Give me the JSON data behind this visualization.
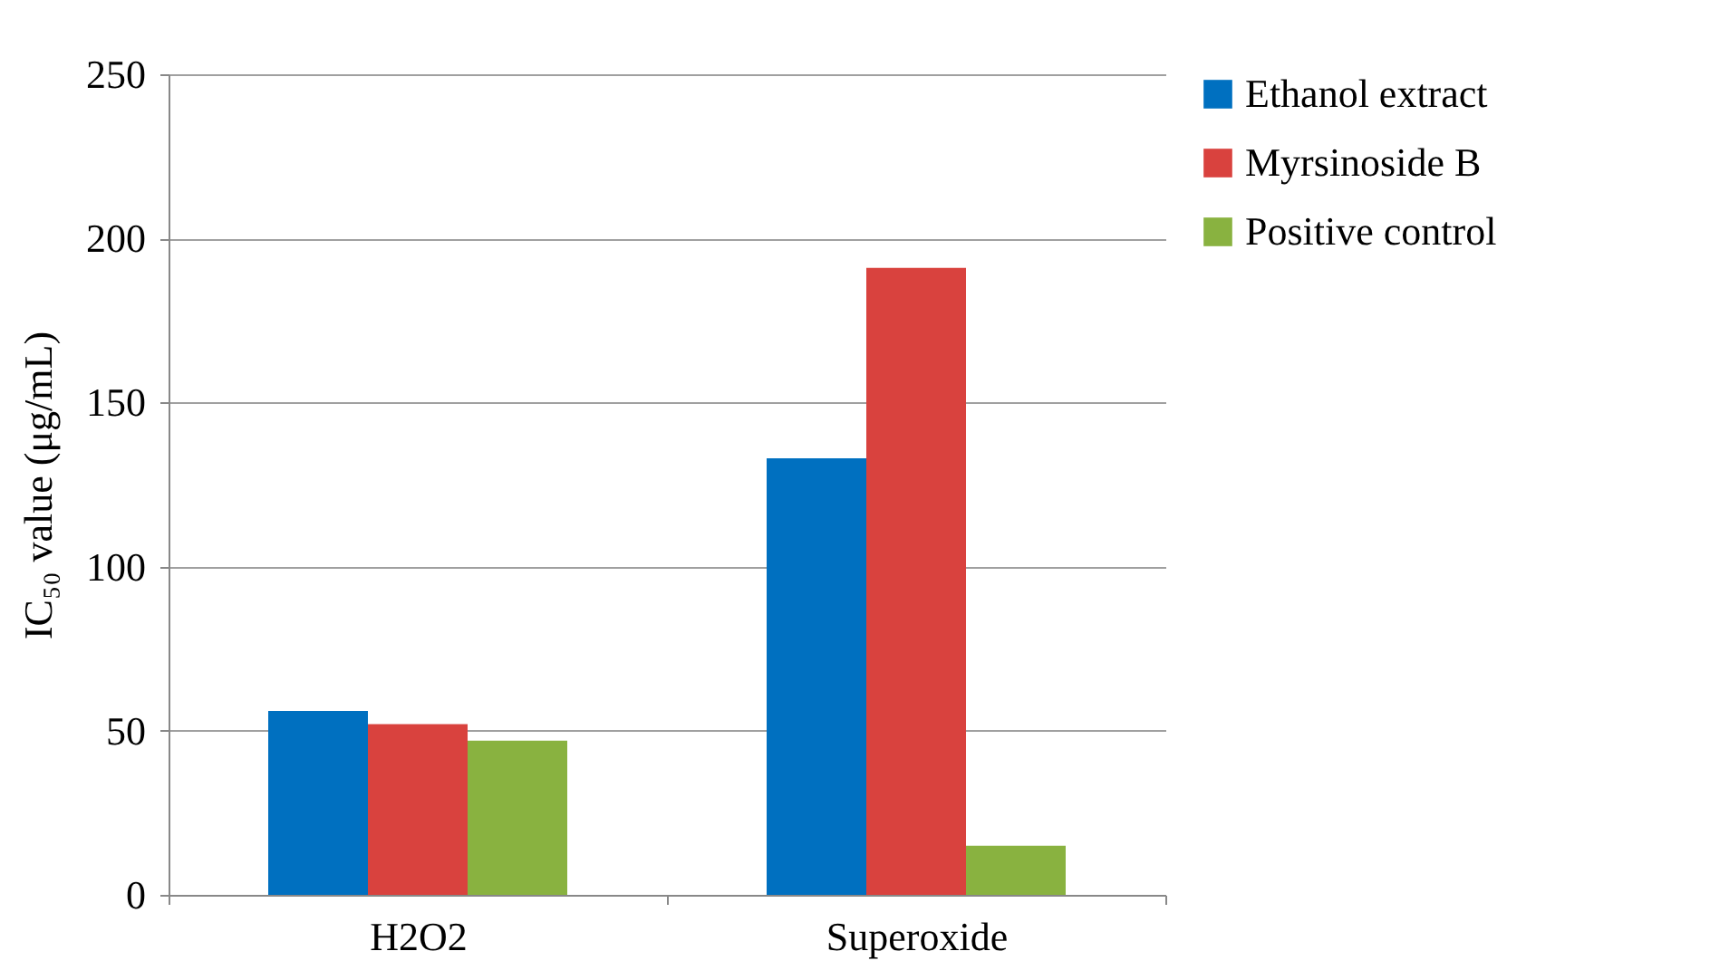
{
  "chart_data": {
    "type": "bar",
    "ylabel": "IC₅₀ value (μg/mL)",
    "categories": [
      "H2O2",
      "Superoxide"
    ],
    "series": [
      {
        "name": "Ethanol extract",
        "color": "#0070c0",
        "values": [
          56,
          133
        ]
      },
      {
        "name": "Myrsinoside B",
        "color": "#d9423e",
        "values": [
          52,
          191
        ]
      },
      {
        "name": "Positive control",
        "color": "#89b240",
        "values": [
          47,
          15
        ]
      }
    ],
    "ylim": [
      0,
      250
    ],
    "yticks": [
      0,
      50,
      100,
      150,
      200,
      250
    ],
    "grid": "y",
    "legend": "right"
  }
}
